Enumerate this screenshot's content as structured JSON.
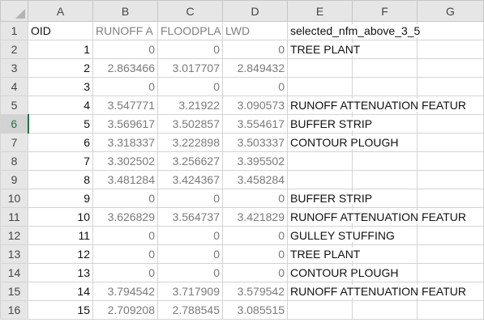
{
  "columns": [
    "A",
    "B",
    "C",
    "D",
    "E",
    "F",
    "G"
  ],
  "rows": [
    {
      "n": "1",
      "a": "OID",
      "b": "RUNOFF A",
      "c": "FLOODPLA",
      "d": "LWD",
      "e": "selected_nfm_above_3_5"
    },
    {
      "n": "2",
      "a": "1",
      "b": "0",
      "c": "0",
      "d": "0",
      "e": "TREE PLANT"
    },
    {
      "n": "3",
      "a": "2",
      "b": "2.863466",
      "c": "3.017707",
      "d": "2.849432",
      "e": ""
    },
    {
      "n": "4",
      "a": "3",
      "b": "0",
      "c": "0",
      "d": "0",
      "e": ""
    },
    {
      "n": "5",
      "a": "4",
      "b": "3.547771",
      "c": "3.21922",
      "d": "3.090573",
      "e": "RUNOFF ATTENUATION FEATUR"
    },
    {
      "n": "6",
      "a": "5",
      "b": "3.569617",
      "c": "3.502857",
      "d": "3.554617",
      "e": "BUFFER STRIP"
    },
    {
      "n": "7",
      "a": "6",
      "b": "3.318337",
      "c": "3.222898",
      "d": "3.503337",
      "e": "CONTOUR PLOUGH"
    },
    {
      "n": "8",
      "a": "7",
      "b": "3.302502",
      "c": "3.256627",
      "d": "3.395502",
      "e": ""
    },
    {
      "n": "9",
      "a": "8",
      "b": "3.481284",
      "c": "3.424367",
      "d": "3.458284",
      "e": ""
    },
    {
      "n": "10",
      "a": "9",
      "b": "0",
      "c": "0",
      "d": "0",
      "e": "BUFFER STRIP"
    },
    {
      "n": "11",
      "a": "10",
      "b": "3.626829",
      "c": "3.564737",
      "d": "3.421829",
      "e": "RUNOFF ATTENUATION FEATUR"
    },
    {
      "n": "12",
      "a": "11",
      "b": "0",
      "c": "0",
      "d": "0",
      "e": "GULLEY STUFFING"
    },
    {
      "n": "13",
      "a": "12",
      "b": "0",
      "c": "0",
      "d": "0",
      "e": "TREE PLANT"
    },
    {
      "n": "14",
      "a": "13",
      "b": "0",
      "c": "0",
      "d": "0",
      "e": "CONTOUR PLOUGH"
    },
    {
      "n": "15",
      "a": "14",
      "b": "3.794542",
      "c": "3.717909",
      "d": "3.579542",
      "e": "RUNOFF ATTENUATION FEATUR"
    },
    {
      "n": "16",
      "a": "15",
      "b": "2.709208",
      "c": "2.788545",
      "d": "3.085515",
      "e": ""
    }
  ],
  "active_row": "6"
}
